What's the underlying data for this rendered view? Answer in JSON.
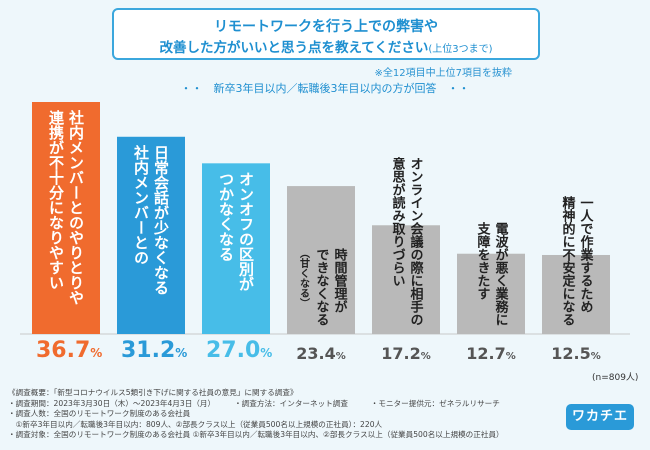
{
  "header": {
    "title_line1": "リモートワークを行う上での弊害や",
    "title_line2": "改善した方がいいと思う点を教えてください",
    "title_suffix": "(上位3つまで)",
    "note": "※全12項目中上位7項目を抜粋",
    "subtitle": "・・　新卒3年目以内／転職後3年目以内の方が回答　・・"
  },
  "chart_data": {
    "type": "bar",
    "categories": [
      "社内メンバーとのやりとりや連携が不十分になりやすい",
      "日常会話が少なくなる社内メンバーとの",
      "オンオフの区別がつかなくなる",
      "時間管理ができなくなる（甘くなる）",
      "オンライン会議の際に相手の意思が読み取りづらい",
      "電波が悪く業務に支障をきたす",
      "一人で作業するため精神的に不安定になる"
    ],
    "bar_lines": [
      [
        "社内メンバーとのやりとりや",
        "連携が不十分になりやすい"
      ],
      [
        "日常会話が少なくなる",
        "社内メンバーとの"
      ],
      [
        "オンオフの区別が",
        "つかなくなる"
      ],
      [
        "時間管理が",
        "できなくなる",
        "（甘くなる）"
      ],
      [
        "オンライン会議の際に相手の",
        "意思が読み取りづらい"
      ],
      [
        "電波が悪く業務に",
        "支障をきたす"
      ],
      [
        "一人で作業するため",
        "精神的に不安定になる"
      ]
    ],
    "values": [
      36.7,
      31.2,
      27.0,
      23.4,
      17.2,
      12.7,
      12.5
    ],
    "value_labels": [
      {
        "num": "36.7",
        "unit": "%"
      },
      {
        "num": "31.2",
        "unit": "%"
      },
      {
        "num": "27.0",
        "unit": "%"
      },
      {
        "num": "23.4",
        "unit": "%"
      },
      {
        "num": "17.2",
        "unit": "%"
      },
      {
        "num": "12.7",
        "unit": "%"
      },
      {
        "num": "12.5",
        "unit": "%"
      }
    ],
    "ylim": [
      0,
      36.7
    ],
    "n_label": "(n=809人)"
  },
  "colors": {
    "rank1": "#f06b2e",
    "rank2": "#2a9ad8",
    "rank3": "#47bde8",
    "other": "#b9b9b9",
    "rank1_text": "#f06b2e",
    "rank2_text": "#2a9ad8",
    "rank3_text": "#47bde8",
    "other_text": "#555555"
  },
  "footer": {
    "lines": [
      "《調査概要：「新型コロナウイルス5類引き下げに関する社員の意見」に関する調査》",
      "・調査期間：2023年3月30日（木）〜2023年4月3日（月）　　　・調査方法：インターネット調査　　　・モニター提供元：ゼネラルリサーチ",
      "・調査人数：全国のリモートワーク制度のある会社員",
      "　①新卒3年目以内／転職後3年目以内：809人、②部長クラス以上（従業員500名以上規模の正社員）：220人",
      "・調査対象：全国のリモートワーク制度のある会社員 ①新卒3年目以内／転職後3年目以内、②部長クラス以上（従業員500名以上規模の正社員）"
    ],
    "logo": "ワカチエ"
  }
}
